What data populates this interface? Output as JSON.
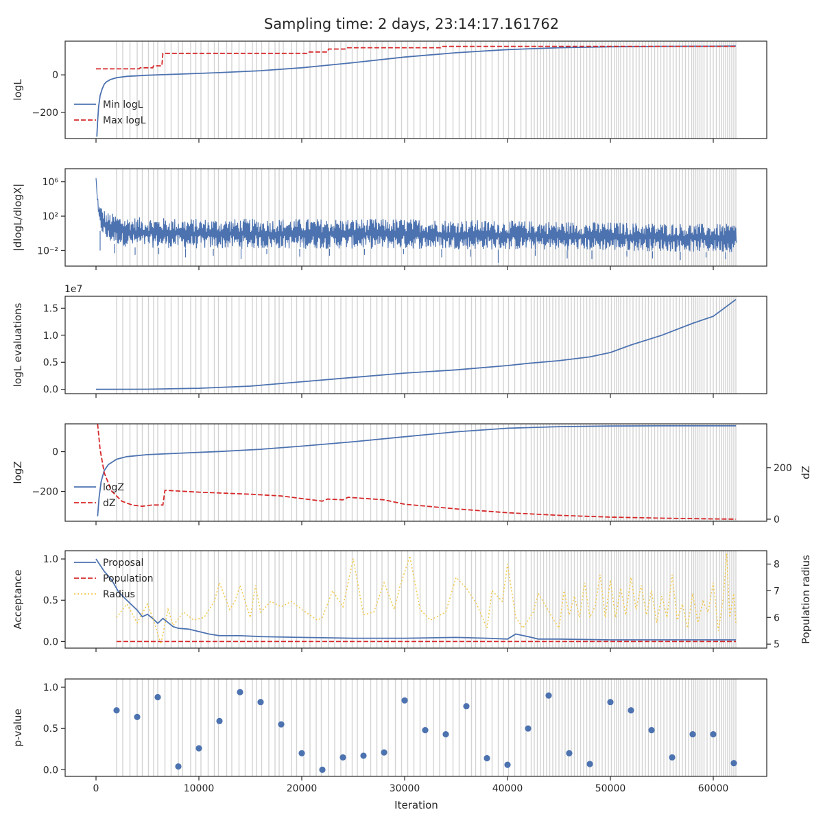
{
  "title": "Sampling time: 2 days, 23:14:17.161762",
  "shared": {
    "xlabel": "Iteration",
    "xlim": [
      -3000,
      65200
    ],
    "xticks": [
      0,
      10000,
      20000,
      30000,
      40000,
      50000,
      60000
    ],
    "xtick_labels": [
      "0",
      "10000",
      "20000",
      "30000",
      "40000",
      "50000",
      "60000"
    ]
  },
  "colors": {
    "blue": "#4c72b0",
    "red": "#d62728",
    "yellow": "#f2c94c",
    "band": "#d3d3d3",
    "axis": "#262626"
  },
  "chart_data": [
    {
      "type": "line",
      "name": "panel-logL",
      "ylabel": "logL",
      "ylim": [
        -340,
        180
      ],
      "yticks": [
        -200,
        0
      ],
      "ytick_labels": [
        "−200",
        "0"
      ],
      "legend": {
        "placement": "lower-left",
        "entries": [
          {
            "label": "Min logL",
            "style": "solid",
            "color": "#4c72b0"
          },
          {
            "label": "Max logL",
            "style": "dashed",
            "color": "#d62728"
          }
        ]
      },
      "series": [
        {
          "name": "Min logL",
          "style": "solid",
          "color": "#4c72b0",
          "x": [
            80,
            150,
            250,
            400,
            600,
            800,
            1000,
            1400,
            2000,
            3000,
            5000,
            8000,
            12000,
            16000,
            20000,
            25000,
            30000,
            35000,
            40000,
            45000,
            50000,
            55000,
            60000,
            62200
          ],
          "y": [
            -330,
            -250,
            -170,
            -110,
            -75,
            -50,
            -38,
            -25,
            -15,
            -8,
            -2,
            4,
            12,
            22,
            38,
            65,
            95,
            118,
            135,
            145,
            150,
            152,
            153,
            154
          ]
        },
        {
          "name": "Max logL",
          "style": "dashed",
          "color": "#d62728",
          "x": [
            0,
            4200,
            4300,
            5500,
            5600,
            6400,
            6500,
            20500,
            20600,
            22500,
            22600,
            24200,
            24300,
            33500,
            33600,
            62200
          ],
          "y": [
            32,
            32,
            38,
            38,
            48,
            48,
            115,
            115,
            122,
            122,
            138,
            138,
            145,
            145,
            152,
            152
          ]
        }
      ]
    },
    {
      "type": "line",
      "name": "panel-dlogL",
      "yscale": "log",
      "ylabel": "|dlogL/dlogX|",
      "ylim": [
        -3.8,
        7.5
      ],
      "yticks": [
        -2,
        2,
        6
      ],
      "ytick_labels": [
        "10⁻²",
        "10²",
        "10⁶"
      ],
      "series": [
        {
          "name": "|dlogL/dlogX|",
          "style": "solid",
          "color": "#4c72b0",
          "envelope_x": [
            0,
            100,
            300,
            1000,
            3000,
            10000,
            20000,
            30000,
            40000,
            50000,
            60000,
            62200
          ],
          "envelope_upper_log10": [
            6.6,
            5.0,
            3.5,
            2.5,
            1.9,
            1.7,
            1.7,
            1.7,
            1.5,
            1.3,
            1.1,
            1.1
          ],
          "envelope_lower_log10": [
            5.5,
            2.5,
            0.5,
            -1.0,
            -1.6,
            -1.8,
            -1.8,
            -1.8,
            -1.9,
            -2.0,
            -2.2,
            -2.2
          ],
          "spikes_x": [
            400,
            1800,
            3800,
            6100,
            8700,
            11400,
            14100,
            16600,
            19800,
            22700,
            26100,
            29900,
            33600,
            36400,
            39100,
            42700,
            45800,
            48200,
            51600,
            54100,
            56800,
            59300,
            61200
          ],
          "spikes_log10": [
            -2.0,
            -2.3,
            -2.5,
            -2.4,
            -2.8,
            -2.6,
            -3.0,
            -2.4,
            -2.7,
            -2.6,
            -2.5,
            -2.4,
            -2.8,
            -2.7,
            -3.4,
            -2.6,
            -2.9,
            -3.0,
            -2.7,
            -2.9,
            -3.1,
            -2.8,
            -3.0
          ]
        }
      ]
    },
    {
      "type": "line",
      "name": "panel-evals",
      "ylabel": "logL evaluations",
      "offset_text": "1e7",
      "ylim": [
        -0.08,
        1.72
      ],
      "yticks": [
        0,
        0.5,
        1.0,
        1.5
      ],
      "ytick_labels": [
        "0.0",
        "0.5",
        "1.0",
        "1.5"
      ],
      "series": [
        {
          "name": "logL evaluations",
          "style": "solid",
          "color": "#4c72b0",
          "x": [
            0,
            5000,
            10000,
            15000,
            20000,
            25000,
            30000,
            35000,
            40000,
            42000,
            45000,
            48000,
            50000,
            52000,
            55000,
            58000,
            60000,
            62200
          ],
          "y": [
            0,
            0.003,
            0.02,
            0.06,
            0.14,
            0.22,
            0.3,
            0.36,
            0.44,
            0.48,
            0.53,
            0.6,
            0.68,
            0.82,
            1.0,
            1.22,
            1.35,
            1.66
          ]
        }
      ]
    },
    {
      "type": "line",
      "name": "panel-logZ",
      "ylabel": "logZ",
      "ylim": [
        -350,
        140
      ],
      "yticks": [
        -200,
        0
      ],
      "ytick_labels": [
        "−200",
        "0"
      ],
      "ylabel_right": "dZ",
      "ylim_right": [
        -8,
        370
      ],
      "yticks_right": [
        0,
        200
      ],
      "ytick_labels_right": [
        "0",
        "200"
      ],
      "legend": {
        "placement": "lower-left",
        "entries": [
          {
            "label": "logZ",
            "style": "solid",
            "color": "#4c72b0"
          },
          {
            "label": "dZ",
            "style": "dashed",
            "color": "#d62728"
          }
        ]
      },
      "series": [
        {
          "name": "logZ",
          "style": "solid",
          "color": "#4c72b0",
          "axis": "left",
          "x": [
            150,
            300,
            500,
            800,
            1200,
            2000,
            3000,
            5000,
            8000,
            12000,
            16000,
            20000,
            25000,
            30000,
            35000,
            40000,
            45000,
            50000,
            55000,
            60000,
            62200
          ],
          "y": [
            -325,
            -230,
            -150,
            -95,
            -65,
            -38,
            -25,
            -15,
            -8,
            1,
            12,
            28,
            50,
            75,
            100,
            118,
            126,
            129,
            130,
            130,
            130
          ]
        },
        {
          "name": "dZ",
          "style": "dashed",
          "color": "#d62728",
          "axis": "right",
          "x": [
            150,
            400,
            800,
            1500,
            2500,
            3500,
            4500,
            5500,
            6500,
            6700,
            10000,
            15000,
            18000,
            22000,
            22500,
            24000,
            24500,
            28000,
            30000,
            35000,
            40000,
            45000,
            50000,
            55000,
            60000,
            62200
          ],
          "y": [
            370,
            270,
            180,
            110,
            70,
            55,
            50,
            55,
            55,
            112,
            105,
            97,
            90,
            70,
            78,
            75,
            85,
            75,
            58,
            40,
            25,
            15,
            8,
            4,
            1,
            0
          ]
        }
      ]
    },
    {
      "type": "line",
      "name": "panel-acceptance",
      "ylabel": "Acceptance",
      "ylim": [
        -0.08,
        1.1
      ],
      "yticks": [
        0,
        0.5,
        1.0
      ],
      "ytick_labels": [
        "0.0",
        "0.5",
        "1.0"
      ],
      "ylabel_right": "Population radius",
      "ylim_right": [
        4.85,
        8.5
      ],
      "yticks_right": [
        5,
        6,
        7,
        8
      ],
      "ytick_labels_right": [
        "5",
        "6",
        "7",
        "8"
      ],
      "legend": {
        "placement": "upper-left",
        "entries": [
          {
            "label": "Proposal",
            "style": "solid",
            "color": "#4c72b0"
          },
          {
            "label": "Population",
            "style": "dashed",
            "color": "#d62728"
          },
          {
            "label": "Radius",
            "style": "dotted",
            "color": "#f2c94c"
          }
        ]
      },
      "series": [
        {
          "name": "Proposal",
          "style": "solid",
          "color": "#4c72b0",
          "axis": "left",
          "x": [
            0,
            800,
            1500,
            2200,
            3000,
            4000,
            4500,
            5000,
            5500,
            6000,
            6500,
            7500,
            8000,
            9000,
            10000,
            11000,
            12000,
            14000,
            16000,
            20000,
            25000,
            30000,
            35000,
            38000,
            40000,
            40800,
            41200,
            42000,
            43000,
            45000,
            50000,
            55000,
            60000,
            62200
          ],
          "y": [
            1.0,
            0.85,
            0.75,
            0.6,
            0.5,
            0.38,
            0.3,
            0.33,
            0.28,
            0.22,
            0.28,
            0.18,
            0.16,
            0.15,
            0.12,
            0.09,
            0.07,
            0.07,
            0.06,
            0.05,
            0.04,
            0.04,
            0.05,
            0.04,
            0.03,
            0.09,
            0.08,
            0.06,
            0.03,
            0.03,
            0.02,
            0.02,
            0.02,
            0.02
          ]
        },
        {
          "name": "Population",
          "style": "dashed",
          "color": "#d62728",
          "axis": "left",
          "x": [
            2000,
            62200
          ],
          "y": [
            0.0,
            0.0
          ]
        },
        {
          "name": "Radius",
          "style": "dotted",
          "color": "#f2c94c",
          "axis": "right",
          "x": [
            2000,
            3000,
            4000,
            5000,
            5500,
            6000,
            6300,
            7000,
            7500,
            8500,
            9500,
            10500,
            11500,
            12000,
            13000,
            13500,
            14000,
            15000,
            15500,
            16000,
            17000,
            18000,
            19000,
            20000,
            21500,
            22000,
            23000,
            24000,
            25000,
            26000,
            27000,
            28000,
            29000,
            29500,
            30500,
            31500,
            32500,
            34000,
            35000,
            36000,
            37000,
            38000,
            38500,
            39500,
            40000,
            40800,
            41500,
            42500,
            43000,
            44500,
            45000,
            45500,
            46000,
            46500,
            47000,
            47500,
            48000,
            48500,
            49000,
            49500,
            50000,
            50500,
            51000,
            51500,
            52000,
            52500,
            53000,
            53500,
            54000,
            54500,
            55000,
            55500,
            56000,
            56500,
            57000,
            57500,
            58000,
            58500,
            59000,
            59500,
            60000,
            60500,
            61000,
            61300,
            61600,
            62000,
            62200
          ],
          "y": [
            6.0,
            6.5,
            5.8,
            6.5,
            6.0,
            5.4,
            5.0,
            6.3,
            5.7,
            6.2,
            5.9,
            6.0,
            6.6,
            7.3,
            6.3,
            6.6,
            7.2,
            6.0,
            7.2,
            6.2,
            6.6,
            6.4,
            6.6,
            6.3,
            5.9,
            6.0,
            7.0,
            6.4,
            8.2,
            6.1,
            6.2,
            7.3,
            6.3,
            7.1,
            8.3,
            6.3,
            5.9,
            6.2,
            7.5,
            7.1,
            6.5,
            5.6,
            7.0,
            6.6,
            8.0,
            6.0,
            5.6,
            6.2,
            6.9,
            5.9,
            5.6,
            7.0,
            6.1,
            6.8,
            6.0,
            7.3,
            6.0,
            6.4,
            7.6,
            6.0,
            7.4,
            6.0,
            7.1,
            6.1,
            7.5,
            6.3,
            7.2,
            6.1,
            7.0,
            5.8,
            6.8,
            6.0,
            7.6,
            5.9,
            6.5,
            5.6,
            6.9,
            5.8,
            6.6,
            6.2,
            7.3,
            5.5,
            6.8,
            8.4,
            6.0,
            6.9,
            5.8
          ]
        }
      ]
    },
    {
      "type": "scatter",
      "name": "panel-pvalue",
      "ylabel": "p-value",
      "ylim": [
        -0.08,
        1.1
      ],
      "yticks": [
        0,
        0.5,
        1.0
      ],
      "ytick_labels": [
        "0.0",
        "0.5",
        "1.0"
      ],
      "series": [
        {
          "name": "p-value",
          "color": "#4c72b0",
          "x": [
            2000,
            4000,
            6000,
            8000,
            10000,
            12000,
            14000,
            16000,
            18000,
            20000,
            22000,
            24000,
            26000,
            28000,
            30000,
            32000,
            34000,
            36000,
            38000,
            40000,
            42000,
            44000,
            46000,
            48000,
            50000,
            52000,
            54000,
            56000,
            58000,
            60000,
            62000
          ],
          "y": [
            0.72,
            0.64,
            0.88,
            0.04,
            0.26,
            0.59,
            0.94,
            0.82,
            0.55,
            0.2,
            0.0,
            0.15,
            0.17,
            0.21,
            0.84,
            0.48,
            0.43,
            0.77,
            0.14,
            0.06,
            0.5,
            0.9,
            0.2,
            0.07,
            0.82,
            0.72,
            0.48,
            0.15,
            0.43,
            0.43,
            0.08
          ]
        }
      ]
    }
  ],
  "bands": {
    "color": "#d3d3d3",
    "x": [
      2000,
      2600,
      3300,
      4000,
      4500,
      5100,
      5600,
      6000,
      6700,
      7300,
      8000,
      8400,
      9200,
      9700,
      10200,
      10900,
      11500,
      11900,
      12700,
      13200,
      13900,
      14500,
      15200,
      15600,
      16100,
      16800,
      17400,
      17800,
      18200,
      19000,
      19500,
      20200,
      20800,
      21400,
      21900,
      22600,
      23200,
      23800,
      24300,
      24900,
      25400,
      26000,
      26700,
      27300,
      27800,
      28400,
      29100,
      29700,
      30300,
      30900,
      31500,
      32100,
      32800,
      33400,
      34000,
      34700,
      35300,
      35900,
      36500,
      36900,
      37400,
      37900,
      38500,
      39100,
      39600,
      40100,
      40700,
      41300,
      41800,
      42300,
      42600,
      42900,
      43200,
      43500,
      43800,
      44100,
      44400,
      44700,
      45000,
      45300,
      45600,
      45900,
      46200,
      46500,
      46800,
      47100,
      47400,
      47700,
      48000,
      48300,
      48600,
      48900,
      49200,
      49500,
      49800,
      50100,
      50400,
      50600,
      50800,
      51000,
      51300,
      51600,
      51900,
      52200,
      52500,
      52800,
      53100,
      53400,
      53700,
      54000,
      54300,
      54600,
      54900,
      55200,
      55500,
      55800,
      56100,
      56400,
      56700,
      57000,
      57300,
      57600,
      57900,
      58100,
      58300,
      58500,
      58700,
      58900,
      59100,
      59400,
      59700,
      60000,
      60300,
      60600,
      60800,
      61000,
      61200,
      61400,
      61600,
      61800,
      62000,
      62200
    ]
  }
}
